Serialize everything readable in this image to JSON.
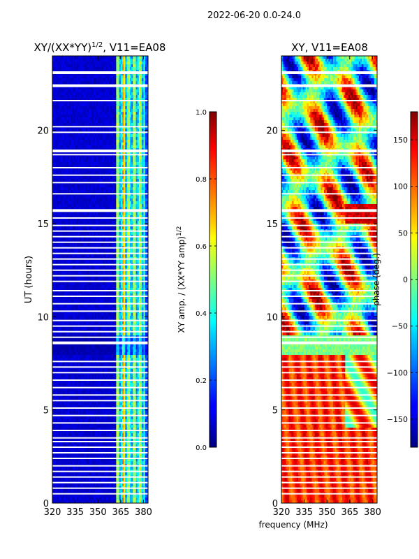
{
  "chart_data": [
    {
      "type": "heatmap",
      "suptitle": "2022-06-20 0.0-24.0",
      "title": "XY/(XX*YY)",
      "title_exp": "1/2",
      "title_suffix": ", V11=EA08",
      "xlabel": "frequency (MHz)",
      "ylabel": "UT (hours)",
      "xlim": [
        320,
        383
      ],
      "ylim": [
        0,
        24
      ],
      "xticks": [
        320,
        335,
        350,
        365,
        380
      ],
      "yticks": [
        0,
        5,
        10,
        15,
        20
      ],
      "colorbar": {
        "label": "XY amp. / (XX*YY amp)",
        "label_exp": "1/2",
        "range": [
          0.0,
          1.0
        ],
        "ticks": [
          "0.0",
          "0.2",
          "0.4",
          "0.6",
          "0.8",
          "1.0"
        ],
        "tick_values": [
          0.0,
          0.2,
          0.4,
          0.6,
          0.8,
          1.0
        ]
      },
      "description": "mostly low amplitude (~0.05-0.15) below 362 MHz, elevated (~0.3-0.5) bands between 362 and 380 MHz"
    },
    {
      "type": "heatmap",
      "title": "XY, V11=EA08",
      "xlim": [
        320,
        383
      ],
      "ylim": [
        0,
        24
      ],
      "xticks": [
        320,
        335,
        350,
        365,
        380
      ],
      "yticks": [
        0,
        5,
        10,
        15,
        20
      ],
      "colorbar": {
        "label": "phase (deg.)",
        "range": [
          -180,
          180
        ],
        "ticks": [
          "150",
          "100",
          "50",
          "0",
          "−50",
          "−100",
          "−150"
        ],
        "tick_values": [
          150,
          100,
          50,
          0,
          -50,
          -100,
          -150
        ]
      },
      "description": "phase mostly ~100-160 deg between 0-8 h, mixed phases 8-24 h"
    }
  ],
  "gaps_hours": [
    23.1,
    22.4,
    21.6,
    20.2,
    19.9,
    18.9,
    18.7,
    18.0,
    17.6,
    17.2,
    16.6,
    15.7,
    15.3,
    14.9,
    14.6,
    14.3,
    14.0,
    13.7,
    13.4,
    13.1,
    12.8,
    12.5,
    12.2,
    11.9,
    11.4,
    11.1,
    10.7,
    10.3,
    9.8,
    9.5,
    9.2,
    8.9,
    8.6,
    7.6,
    7.3,
    7.0,
    6.6,
    6.2,
    5.8,
    5.5,
    5.1,
    4.7,
    4.3,
    3.9,
    3.5,
    3.3,
    3.0,
    2.7,
    2.4,
    2.0,
    1.7,
    1.4,
    1.1,
    0.8,
    0.5
  ]
}
